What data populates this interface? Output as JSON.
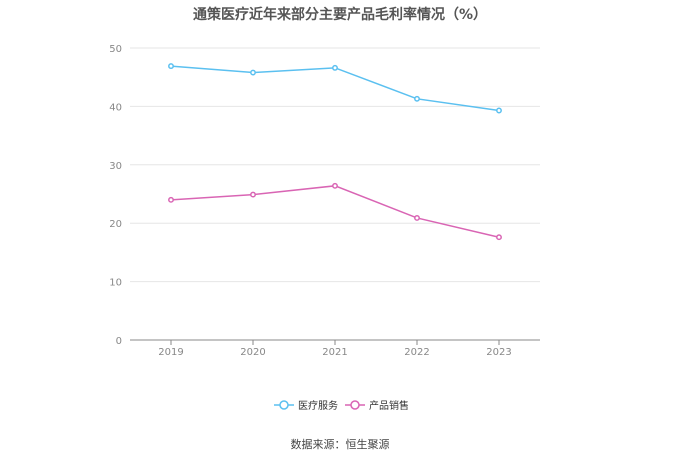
{
  "chart_data": {
    "type": "line",
    "title": "通策医疗近年来部分主要产品毛利率情况（%）",
    "xlabel": "",
    "ylabel": "",
    "categories": [
      "2019",
      "2020",
      "2021",
      "2022",
      "2023"
    ],
    "ylim": [
      0,
      50
    ],
    "yticks": [
      0,
      10,
      20,
      30,
      40,
      50
    ],
    "grid": true,
    "legend_position": "bottom-center",
    "series": [
      {
        "name": "医疗服务",
        "color": "#5bc0f0",
        "values": [
          46.9,
          45.8,
          46.6,
          41.3,
          39.3
        ]
      },
      {
        "name": "产品销售",
        "color": "#d965b4",
        "values": [
          24.0,
          24.9,
          26.4,
          20.9,
          17.6
        ]
      }
    ]
  },
  "footer": {
    "source": "数据来源：恒生聚源"
  }
}
